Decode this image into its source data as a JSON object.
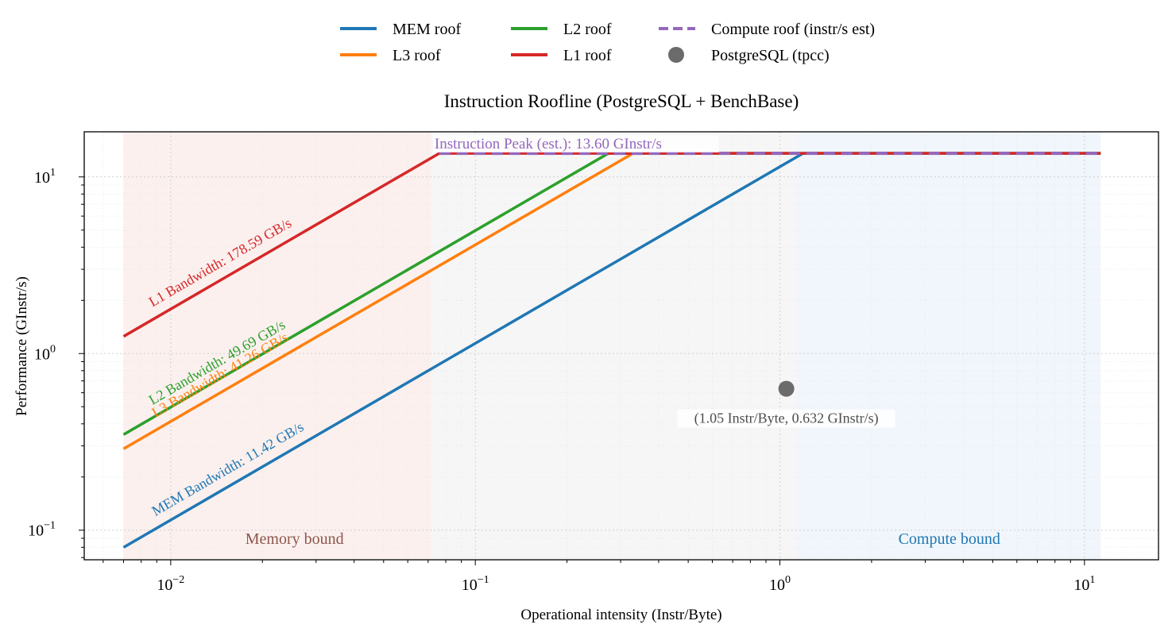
{
  "chart_data": {
    "type": "line",
    "title": "Instruction Roofline (PostgreSQL + BenchBase)",
    "xlabel": "Operational intensity (Instr/Byte)",
    "ylabel": "Performance (GInstr/s)",
    "x_scale": "log",
    "y_scale": "log",
    "xlim": [
      0.0052,
      17.5
    ],
    "ylim": [
      0.068,
      18
    ],
    "grid": true,
    "x_ticks": [
      {
        "value": 0.01,
        "base": "10",
        "exp": "−2"
      },
      {
        "value": 0.1,
        "base": "10",
        "exp": "−1"
      },
      {
        "value": 1,
        "base": "10",
        "exp": "0"
      },
      {
        "value": 10,
        "base": "10",
        "exp": "1"
      }
    ],
    "y_ticks": [
      {
        "value": 0.1,
        "base": "10",
        "exp": "−1"
      },
      {
        "value": 1,
        "base": "10",
        "exp": "0"
      },
      {
        "value": 10,
        "base": "10",
        "exp": "1"
      }
    ],
    "legend": {
      "placement": "top-center",
      "entries": [
        {
          "label": "MEM roof",
          "color": "#1f77b4",
          "marker": "line"
        },
        {
          "label": "L3 roof",
          "color": "#ff7f0e",
          "marker": "line"
        },
        {
          "label": "L2 roof",
          "color": "#2ca02c",
          "marker": "line"
        },
        {
          "label": "L1 roof",
          "color": "#d62728",
          "marker": "line"
        },
        {
          "label": "Compute roof (instr/s est)",
          "color": "#9467bd",
          "marker": "dashed"
        },
        {
          "label": "PostgreSQL (tpcc)",
          "color": "#6b6b6b",
          "marker": "dot"
        }
      ]
    },
    "x_range": [
      0.007,
      11.3
    ],
    "compute_peak": 13.6,
    "roofs": [
      {
        "name": "MEM roof",
        "bandwidth": 11.42,
        "color": "#1f77b4",
        "label": "MEM Bandwidth: 11.42 GB/s"
      },
      {
        "name": "L3 roof",
        "bandwidth": 41.26,
        "color": "#ff7f0e",
        "label": "L3 Bandwidth: 41.26 GB/s"
      },
      {
        "name": "L2 roof",
        "bandwidth": 49.69,
        "color": "#2ca02c",
        "label": "L2 Bandwidth: 49.69 GB/s"
      },
      {
        "name": "L1 roof",
        "bandwidth": 178.59,
        "color": "#d62728",
        "label": "L1 Bandwidth: 178.59 GB/s"
      }
    ],
    "compute_roof": {
      "label": "Instruction Peak (est.): 13.60 GInstr/s",
      "color": "#9467bd"
    },
    "point": {
      "x": 1.05,
      "y": 0.632,
      "label": "(1.05 Instr/Byte, 0.632 GInstr/s)",
      "color": "#6b6b6b"
    },
    "regions": [
      {
        "name": "memory",
        "label": "Memory bound",
        "x_from": 0.007,
        "x_to": 0.0715,
        "fill": "#f7e4e0",
        "text_color": "#8c564b"
      },
      {
        "name": "middle",
        "label": "",
        "x_from": 0.0715,
        "x_to": 1.14,
        "fill": "#eeeeee",
        "text_color": "#555555"
      },
      {
        "name": "compute",
        "label": "Compute bound",
        "x_from": 1.14,
        "x_to": 11.3,
        "fill": "#e3eef7",
        "text_color": "#1f77b4"
      }
    ]
  }
}
